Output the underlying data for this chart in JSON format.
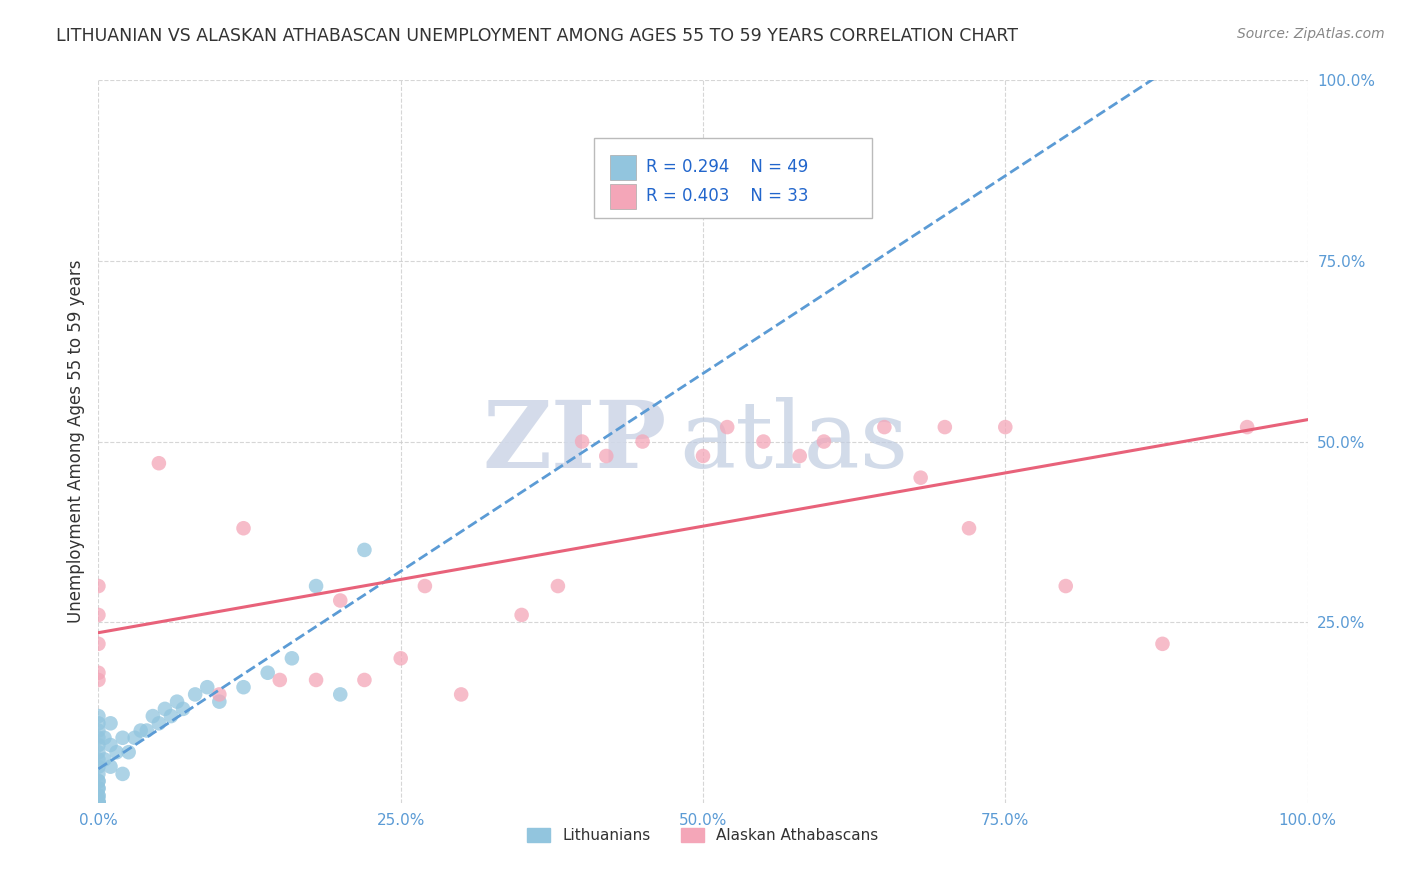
{
  "title": "LITHUANIAN VS ALASKAN ATHABASCAN UNEMPLOYMENT AMONG AGES 55 TO 59 YEARS CORRELATION CHART",
  "source": "Source: ZipAtlas.com",
  "ylabel": "Unemployment Among Ages 55 to 59 years",
  "xlim": [
    0,
    1
  ],
  "ylim": [
    0,
    1
  ],
  "xticks": [
    0,
    0.25,
    0.5,
    0.75,
    1.0
  ],
  "xticklabels": [
    "0.0%",
    "25.0%",
    "50.0%",
    "75.0%",
    "100.0%"
  ],
  "yticks": [
    0.25,
    0.5,
    0.75,
    1.0
  ],
  "yticklabels": [
    "25.0%",
    "50.0%",
    "75.0%",
    "100.0%"
  ],
  "legend_label1": "Lithuanians",
  "legend_label2": "Alaskan Athabascans",
  "R1": 0.294,
  "N1": 49,
  "R2": 0.403,
  "N2": 33,
  "color1": "#92c5de",
  "color2": "#f4a6b8",
  "line_color1": "#5b9bd5",
  "line_color2": "#e8627a",
  "watermark_zip": "ZIP",
  "watermark_atlas": "atlas",
  "bg_color": "#ffffff",
  "grid_color": "#cccccc",
  "lithuanians_x": [
    0.0,
    0.0,
    0.0,
    0.0,
    0.0,
    0.0,
    0.0,
    0.0,
    0.0,
    0.0,
    0.0,
    0.0,
    0.0,
    0.0,
    0.0,
    0.0,
    0.0,
    0.0,
    0.0,
    0.0,
    0.0,
    0.0,
    0.005,
    0.005,
    0.01,
    0.01,
    0.01,
    0.015,
    0.02,
    0.02,
    0.025,
    0.03,
    0.035,
    0.04,
    0.045,
    0.05,
    0.055,
    0.06,
    0.065,
    0.07,
    0.08,
    0.09,
    0.1,
    0.12,
    0.14,
    0.16,
    0.18,
    0.2,
    0.22
  ],
  "lithuanians_y": [
    0.0,
    0.0,
    0.0,
    0.0,
    0.0,
    0.0,
    0.005,
    0.01,
    0.01,
    0.02,
    0.02,
    0.03,
    0.03,
    0.04,
    0.05,
    0.06,
    0.07,
    0.08,
    0.09,
    0.1,
    0.11,
    0.12,
    0.06,
    0.09,
    0.05,
    0.08,
    0.11,
    0.07,
    0.04,
    0.09,
    0.07,
    0.09,
    0.1,
    0.1,
    0.12,
    0.11,
    0.13,
    0.12,
    0.14,
    0.13,
    0.15,
    0.16,
    0.14,
    0.16,
    0.18,
    0.2,
    0.3,
    0.15,
    0.35
  ],
  "athabascan_x": [
    0.0,
    0.0,
    0.0,
    0.0,
    0.0,
    0.05,
    0.1,
    0.12,
    0.15,
    0.18,
    0.2,
    0.22,
    0.25,
    0.27,
    0.3,
    0.35,
    0.38,
    0.4,
    0.42,
    0.45,
    0.5,
    0.52,
    0.55,
    0.58,
    0.6,
    0.65,
    0.68,
    0.7,
    0.72,
    0.75,
    0.8,
    0.88,
    0.95
  ],
  "athabascan_y": [
    0.17,
    0.18,
    0.22,
    0.26,
    0.3,
    0.47,
    0.15,
    0.38,
    0.17,
    0.17,
    0.28,
    0.17,
    0.2,
    0.3,
    0.15,
    0.26,
    0.3,
    0.5,
    0.48,
    0.5,
    0.48,
    0.52,
    0.5,
    0.48,
    0.5,
    0.52,
    0.45,
    0.52,
    0.38,
    0.52,
    0.3,
    0.22,
    0.52
  ]
}
